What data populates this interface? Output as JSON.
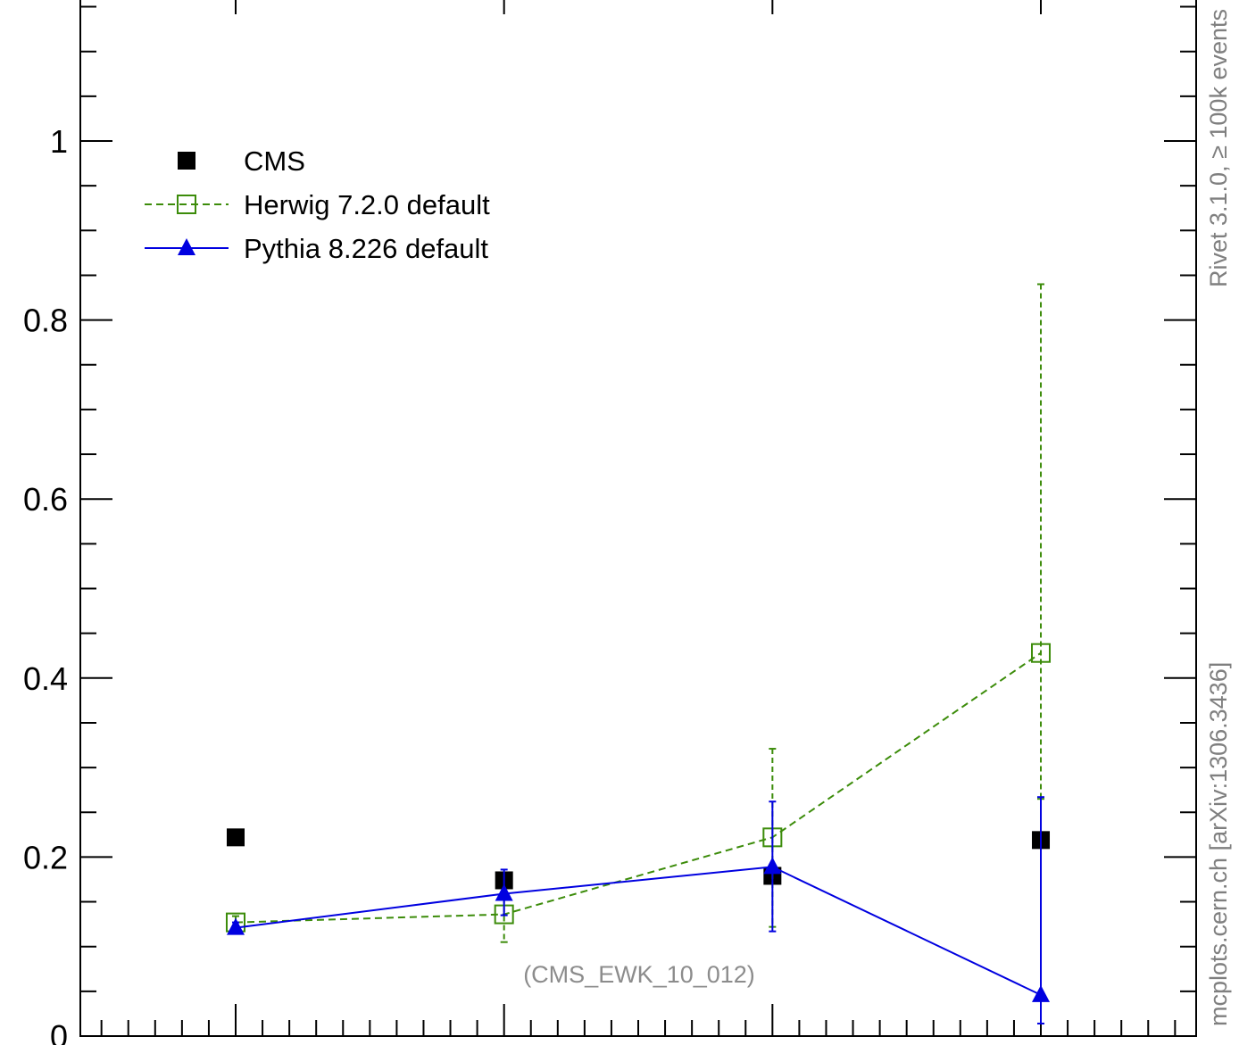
{
  "chart_data": {
    "type": "scatter",
    "title": "",
    "xlabel": "",
    "ylabel": "",
    "ylim": [
      0,
      1.15
    ],
    "y_ticks": [
      "0",
      "0.2",
      "0.4",
      "0.6",
      "0.8",
      "1"
    ],
    "grid": false,
    "legend_position": "top-left",
    "annotation": "(CMS_EWK_10_012)",
    "side_labels": {
      "top": "Rivet 3.1.0, ≥ 100k events",
      "bottom": "mcplots.cern.ch [arXiv:1306.3436]"
    },
    "x": [
      1,
      2,
      3,
      4
    ],
    "series": [
      {
        "name": "CMS",
        "marker": "filled-square",
        "line": "none",
        "color": "#000000",
        "values": [
          0.222,
          0.174,
          0.179,
          0.219
        ]
      },
      {
        "name": "Herwig 7.2.0 default",
        "marker": "open-square",
        "line": "dashed",
        "color": "#3c8c0a",
        "values": [
          0.127,
          0.136,
          0.222,
          0.428
        ],
        "err_low": [
          0.007,
          0.031,
          0.1,
          0.163
        ],
        "err_high": [
          0.007,
          0.018,
          0.099,
          0.412
        ]
      },
      {
        "name": "Pythia 8.226 default",
        "marker": "filled-triangle",
        "line": "solid",
        "color": "#0000e0",
        "values": [
          0.121,
          0.159,
          0.189,
          0.046
        ],
        "err_low": [
          0.006,
          0.024,
          0.072,
          0.032
        ],
        "err_high": [
          0.006,
          0.027,
          0.073,
          0.221
        ]
      }
    ]
  }
}
